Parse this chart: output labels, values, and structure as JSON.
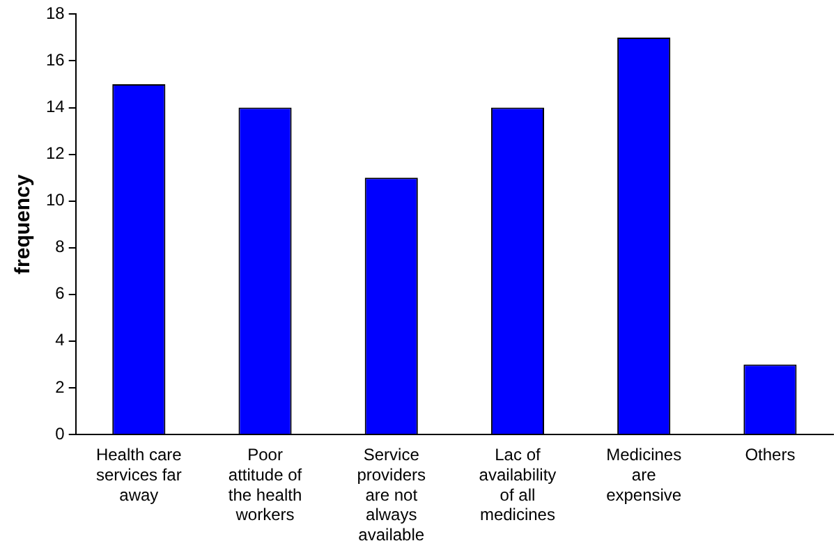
{
  "chart_data": {
    "type": "bar",
    "ylabel": "frequency",
    "categories": [
      "Health care services far away",
      "Poor attitude of the health workers",
      "Service providers are not always available",
      "Lac of availability of all medicines",
      "Medicines are expensive",
      "Others"
    ],
    "values": [
      15,
      14,
      11,
      14,
      17,
      3
    ],
    "color": "#0000ff",
    "ylim": [
      0,
      18
    ],
    "yticks": [
      0,
      2,
      4,
      6,
      8,
      10,
      12,
      14,
      16,
      18
    ],
    "grid": false
  }
}
